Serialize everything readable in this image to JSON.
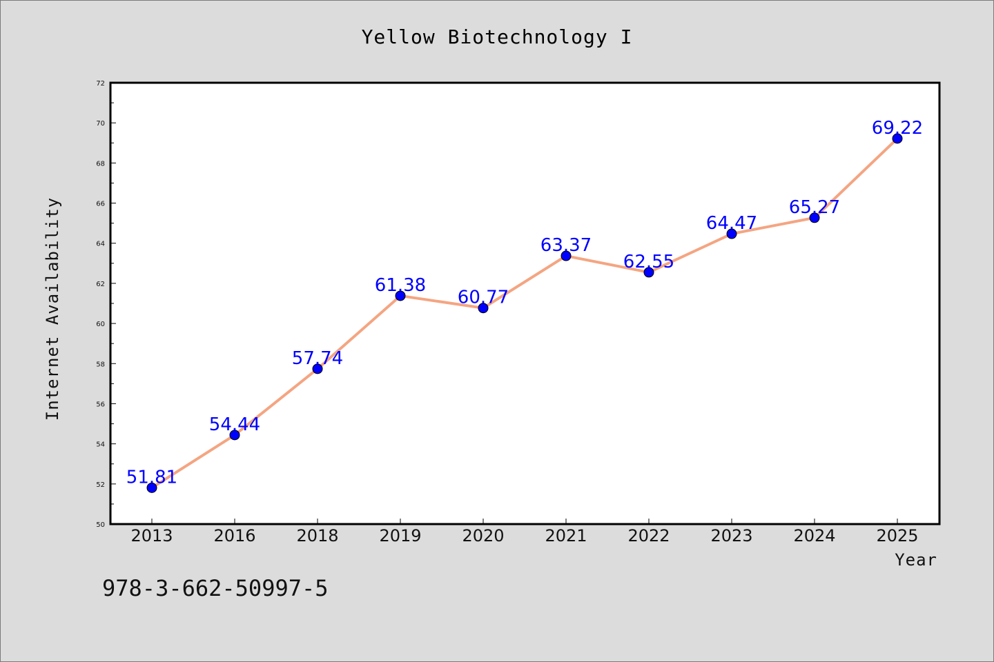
{
  "chart_data": {
    "type": "line",
    "title": "Yellow Biotechnology I",
    "xlabel": "Year",
    "ylabel": "Internet Availability",
    "categories": [
      "2013",
      "2016",
      "2018",
      "2019",
      "2020",
      "2021",
      "2022",
      "2023",
      "2024",
      "2025"
    ],
    "series": [
      {
        "values": [
          51.81,
          54.44,
          57.74,
          61.38,
          60.77,
          63.37,
          62.55,
          64.47,
          65.27,
          69.22
        ],
        "data_labels": [
          "51.81",
          "54.44",
          "57.74",
          "61.38",
          "60.77",
          "63.37",
          "62.55",
          "64.47",
          "65.27",
          "69.22"
        ],
        "line_color": "#f4a582",
        "marker_color": "#0000ff"
      }
    ],
    "ylim": [
      50,
      72
    ],
    "yticks": [
      50,
      52,
      54,
      56,
      58,
      60,
      62,
      64,
      66,
      68,
      70,
      72
    ],
    "ytick_labels": [
      "50",
      "52",
      "54",
      "56",
      "58",
      "60",
      "62",
      "64",
      "66",
      "68",
      "70",
      "72"
    ],
    "grid": false,
    "legend": "none",
    "plot_background": "#ffffff",
    "page_background": "#dcdcdc"
  },
  "footer": {
    "isbn": "978-3-662-50997-5"
  }
}
